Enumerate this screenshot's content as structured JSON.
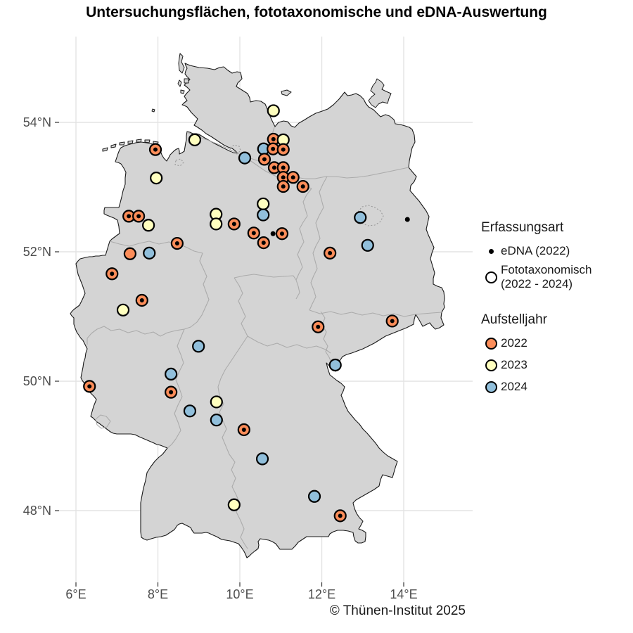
{
  "title": "Untersuchungsflächen, fototaxonomische und eDNA-Auswertung",
  "credit": "© Thünen-Institut 2025",
  "colors": {
    "2022": "#FC8D59",
    "2023": "#FFFFBF",
    "2024": "#91BFDB",
    "edna_dot": "#000000",
    "land": "#D4D4D4",
    "country_outline": "#1A1A1A",
    "state_border": "#ABABAB",
    "gridline": "#E3E3E3",
    "axis_text": "#4D4D4D"
  },
  "axes": {
    "x": {
      "ticks": [
        {
          "value": 6,
          "label": "6°E"
        },
        {
          "value": 8,
          "label": "8°E"
        },
        {
          "value": 10,
          "label": "10°E"
        },
        {
          "value": 12,
          "label": "12°E"
        },
        {
          "value": 14,
          "label": "14°E"
        }
      ]
    },
    "y": {
      "ticks": [
        {
          "value": 54,
          "label": "54°N"
        },
        {
          "value": 52,
          "label": "52°N"
        },
        {
          "value": 50,
          "label": "50°N"
        },
        {
          "value": 48,
          "label": "48°N"
        }
      ]
    }
  },
  "legend": {
    "erfassungsart": {
      "title": "Erfassungsart",
      "items": [
        {
          "symbol": "dot",
          "label": "eDNA (2022)"
        },
        {
          "symbol": "open-circle",
          "label": "Fototaxonomisch (2022 - 2024)",
          "line1": "Fototaxonomisch",
          "line2": "(2022 - 2024)"
        }
      ]
    },
    "aufstelljahr": {
      "title": "Aufstelljahr",
      "items": [
        {
          "label": "2022",
          "color": "#FC8D59"
        },
        {
          "label": "2023",
          "color": "#FFFFBF"
        },
        {
          "label": "2024",
          "color": "#91BFDB"
        }
      ]
    }
  },
  "chart_data": {
    "type": "scatter",
    "note": "Study sites in Germany; lon/lat in degrees; erfassung: foto+edna = open circle with inner black dot, foto = open circle only, edna = small black dot only",
    "xlabel_ticks_deg_E": [
      6,
      8,
      10,
      12,
      14
    ],
    "ylabel_ticks_deg_N": [
      48,
      50,
      52,
      54
    ],
    "points": [
      {
        "lon": 10.82,
        "lat": 53.74,
        "year": 2022,
        "erfassung": "foto+edna"
      },
      {
        "lon": 11.06,
        "lat": 53.73,
        "year": 2023,
        "erfassung": "foto"
      },
      {
        "lon": 10.58,
        "lat": 53.59,
        "year": 2024,
        "erfassung": "foto"
      },
      {
        "lon": 10.81,
        "lat": 53.59,
        "year": 2022,
        "erfassung": "foto+edna"
      },
      {
        "lon": 11.06,
        "lat": 53.58,
        "year": 2022,
        "erfassung": "foto+edna"
      },
      {
        "lon": 10.6,
        "lat": 53.43,
        "year": 2022,
        "erfassung": "foto+edna"
      },
      {
        "lon": 10.84,
        "lat": 53.3,
        "year": 2022,
        "erfassung": "foto+edna"
      },
      {
        "lon": 11.06,
        "lat": 53.3,
        "year": 2022,
        "erfassung": "foto+edna"
      },
      {
        "lon": 11.06,
        "lat": 53.15,
        "year": 2022,
        "erfassung": "foto+edna"
      },
      {
        "lon": 11.3,
        "lat": 53.15,
        "year": 2022,
        "erfassung": "foto+edna"
      },
      {
        "lon": 11.06,
        "lat": 53.01,
        "year": 2022,
        "erfassung": "foto+edna"
      },
      {
        "lon": 11.54,
        "lat": 53.01,
        "year": 2022,
        "erfassung": "foto+edna"
      },
      {
        "lon": 10.12,
        "lat": 53.45,
        "year": 2024,
        "erfassung": "foto"
      },
      {
        "lon": 10.82,
        "lat": 54.18,
        "year": 2023,
        "erfassung": "foto"
      },
      {
        "lon": 8.9,
        "lat": 53.73,
        "year": 2023,
        "erfassung": "foto"
      },
      {
        "lon": 7.94,
        "lat": 53.58,
        "year": 2022,
        "erfassung": "foto+edna"
      },
      {
        "lon": 7.96,
        "lat": 53.14,
        "year": 2023,
        "erfassung": "foto"
      },
      {
        "lon": 7.29,
        "lat": 52.55,
        "year": 2022,
        "erfassung": "foto+edna"
      },
      {
        "lon": 7.53,
        "lat": 52.55,
        "year": 2022,
        "erfassung": "foto+edna"
      },
      {
        "lon": 7.77,
        "lat": 52.41,
        "year": 2023,
        "erfassung": "foto"
      },
      {
        "lon": 8.47,
        "lat": 52.13,
        "year": 2022,
        "erfassung": "foto+edna"
      },
      {
        "lon": 7.32,
        "lat": 51.97,
        "year": 2022,
        "erfassung": "foto"
      },
      {
        "lon": 7.79,
        "lat": 51.98,
        "year": 2024,
        "erfassung": "foto"
      },
      {
        "lon": 6.88,
        "lat": 51.66,
        "year": 2022,
        "erfassung": "foto+edna"
      },
      {
        "lon": 7.61,
        "lat": 51.25,
        "year": 2022,
        "erfassung": "foto+edna"
      },
      {
        "lon": 7.15,
        "lat": 51.1,
        "year": 2023,
        "erfassung": "foto"
      },
      {
        "lon": 9.42,
        "lat": 52.58,
        "year": 2023,
        "erfassung": "foto"
      },
      {
        "lon": 9.42,
        "lat": 52.43,
        "year": 2023,
        "erfassung": "foto"
      },
      {
        "lon": 9.86,
        "lat": 52.43,
        "year": 2022,
        "erfassung": "foto+edna"
      },
      {
        "lon": 10.57,
        "lat": 52.74,
        "year": 2023,
        "erfassung": "foto"
      },
      {
        "lon": 10.57,
        "lat": 52.57,
        "year": 2024,
        "erfassung": "foto"
      },
      {
        "lon": 10.34,
        "lat": 52.29,
        "year": 2022,
        "erfassung": "foto+edna"
      },
      {
        "lon": 10.81,
        "lat": 52.28,
        "year": null,
        "erfassung": "edna"
      },
      {
        "lon": 11.03,
        "lat": 52.28,
        "year": 2022,
        "erfassung": "foto+edna"
      },
      {
        "lon": 10.58,
        "lat": 52.14,
        "year": 2022,
        "erfassung": "foto+edna"
      },
      {
        "lon": 12.94,
        "lat": 52.53,
        "year": 2024,
        "erfassung": "foto"
      },
      {
        "lon": 14.09,
        "lat": 52.5,
        "year": null,
        "erfassung": "edna"
      },
      {
        "lon": 13.12,
        "lat": 52.1,
        "year": 2024,
        "erfassung": "foto"
      },
      {
        "lon": 12.2,
        "lat": 51.98,
        "year": 2022,
        "erfassung": "foto+edna"
      },
      {
        "lon": 11.91,
        "lat": 50.84,
        "year": 2022,
        "erfassung": "foto+edna"
      },
      {
        "lon": 13.72,
        "lat": 50.93,
        "year": 2022,
        "erfassung": "foto+edna"
      },
      {
        "lon": 12.33,
        "lat": 50.25,
        "year": 2024,
        "erfassung": "foto"
      },
      {
        "lon": 8.99,
        "lat": 50.54,
        "year": 2024,
        "erfassung": "foto"
      },
      {
        "lon": 8.32,
        "lat": 50.11,
        "year": 2024,
        "erfassung": "foto"
      },
      {
        "lon": 8.32,
        "lat": 49.83,
        "year": 2022,
        "erfassung": "foto+edna"
      },
      {
        "lon": 9.43,
        "lat": 49.68,
        "year": 2023,
        "erfassung": "foto"
      },
      {
        "lon": 8.78,
        "lat": 49.54,
        "year": 2024,
        "erfassung": "foto"
      },
      {
        "lon": 9.43,
        "lat": 49.4,
        "year": 2024,
        "erfassung": "foto"
      },
      {
        "lon": 10.1,
        "lat": 49.25,
        "year": 2022,
        "erfassung": "foto+edna"
      },
      {
        "lon": 6.33,
        "lat": 49.92,
        "year": 2022,
        "erfassung": "foto+edna"
      },
      {
        "lon": 10.55,
        "lat": 48.8,
        "year": 2024,
        "erfassung": "foto"
      },
      {
        "lon": 9.86,
        "lat": 48.09,
        "year": 2023,
        "erfassung": "foto"
      },
      {
        "lon": 11.82,
        "lat": 48.22,
        "year": 2024,
        "erfassung": "foto"
      },
      {
        "lon": 12.45,
        "lat": 47.92,
        "year": 2022,
        "erfassung": "foto+edna"
      }
    ]
  }
}
